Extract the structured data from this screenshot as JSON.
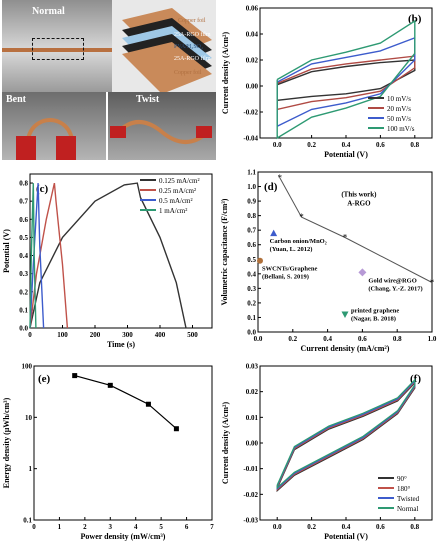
{
  "photos": {
    "normal_label": "Normal",
    "twist_label": "Twist",
    "bent_label": "Bent",
    "stack_layers": [
      "Copper foil",
      "25A-RGO film",
      "PVA/H₂SO₄",
      "25A-RGO film",
      "Copper foil"
    ]
  },
  "chart_data": [
    {
      "panel": "(b)",
      "type": "line",
      "xlabel": "Potential (V)",
      "ylabel": "Current density (A/cm²)",
      "xlim": [
        -0.1,
        0.9
      ],
      "ylim": [
        -0.04,
        0.06
      ],
      "xticks": [
        "0.0",
        "0.2",
        "0.4",
        "0.6",
        "0.8"
      ],
      "yticks": [
        "-0.04",
        "-0.02",
        "0.00",
        "0.02",
        "0.04",
        "0.06"
      ],
      "legend_position": "bottom-right",
      "series": [
        {
          "name": "10 mV/s",
          "color": "#333333",
          "upper": [
            [
              0,
              0.001
            ],
            [
              0.2,
              0.011
            ],
            [
              0.4,
              0.015
            ],
            [
              0.6,
              0.018
            ],
            [
              0.8,
              0.02
            ]
          ],
          "lower": [
            [
              0.8,
              0.012
            ],
            [
              0.6,
              -0.002
            ],
            [
              0.4,
              -0.006
            ],
            [
              0.2,
              -0.008
            ],
            [
              0,
              -0.011
            ]
          ]
        },
        {
          "name": "20 mV/s",
          "color": "#b04a44",
          "upper": [
            [
              0,
              0.002
            ],
            [
              0.2,
              0.013
            ],
            [
              0.4,
              0.017
            ],
            [
              0.6,
              0.02
            ],
            [
              0.8,
              0.023
            ]
          ],
          "lower": [
            [
              0.8,
              0.014
            ],
            [
              0.6,
              -0.004
            ],
            [
              0.4,
              -0.009
            ],
            [
              0.2,
              -0.012
            ],
            [
              0,
              -0.018
            ]
          ]
        },
        {
          "name": "50 mV/s",
          "color": "#3d5ccc",
          "upper": [
            [
              0,
              0.003
            ],
            [
              0.2,
              0.017
            ],
            [
              0.4,
              0.022
            ],
            [
              0.6,
              0.027
            ],
            [
              0.8,
              0.037
            ]
          ],
          "lower": [
            [
              0.8,
              0.02
            ],
            [
              0.6,
              -0.006
            ],
            [
              0.4,
              -0.013
            ],
            [
              0.2,
              -0.018
            ],
            [
              0,
              -0.031
            ]
          ]
        },
        {
          "name": "100 mV/s",
          "color": "#2e9a73",
          "upper": [
            [
              0,
              0.005
            ],
            [
              0.2,
              0.02
            ],
            [
              0.4,
              0.026
            ],
            [
              0.6,
              0.033
            ],
            [
              0.8,
              0.05
            ]
          ],
          "lower": [
            [
              0.8,
              0.025
            ],
            [
              0.6,
              -0.008
            ],
            [
              0.4,
              -0.017
            ],
            [
              0.2,
              -0.024
            ],
            [
              0,
              -0.04
            ]
          ]
        }
      ]
    },
    {
      "panel": "(c)",
      "type": "line",
      "xlabel": "Time (s)",
      "ylabel": "Potential (V)",
      "xlim": [
        0,
        560
      ],
      "ylim": [
        0,
        0.85
      ],
      "xticks": [
        "0",
        "100",
        "200",
        "300",
        "400",
        "500"
      ],
      "yticks": [
        "0.0",
        "0.1",
        "0.2",
        "0.3",
        "0.4",
        "0.5",
        "0.6",
        "0.7",
        "0.8"
      ],
      "legend_position": "top-right",
      "series": [
        {
          "name": "0.125 mA/cm²",
          "color": "#333333",
          "points": [
            [
              0,
              0
            ],
            [
              30,
              0.25
            ],
            [
              100,
              0.5
            ],
            [
              200,
              0.7
            ],
            [
              290,
              0.79
            ],
            [
              330,
              0.8
            ],
            [
              340,
              0.72
            ],
            [
              400,
              0.5
            ],
            [
              450,
              0.25
            ],
            [
              480,
              0
            ]
          ]
        },
        {
          "name": "0.25 mA/cm²",
          "color": "#c0524a",
          "points": [
            [
              0,
              0
            ],
            [
              20,
              0.3
            ],
            [
              50,
              0.6
            ],
            [
              75,
              0.8
            ],
            [
              80,
              0.7
            ],
            [
              100,
              0.35
            ],
            [
              115,
              0
            ]
          ]
        },
        {
          "name": "0.5 mA/cm²",
          "color": "#3d5ccc",
          "points": [
            [
              0,
              0
            ],
            [
              10,
              0.35
            ],
            [
              25,
              0.8
            ],
            [
              30,
              0.45
            ],
            [
              42,
              0
            ]
          ]
        },
        {
          "name": "1 mA/cm²",
          "color": "#2e9a73",
          "points": [
            [
              0,
              0
            ],
            [
              4,
              0.4
            ],
            [
              10,
              0.8
            ],
            [
              13,
              0.4
            ],
            [
              18,
              0
            ]
          ]
        }
      ]
    },
    {
      "panel": "(d)",
      "type": "scatter",
      "xlabel": "Current density (mA/cm²)",
      "ylabel": "Volumetric capacitance (F/cm³)",
      "xlim": [
        0,
        1.0
      ],
      "ylim": [
        0,
        1.1
      ],
      "xticks": [
        "0.0",
        "0.2",
        "0.4",
        "0.6",
        "0.8",
        "1.0"
      ],
      "yticks": [
        "0.0",
        "0.1",
        "0.2",
        "0.3",
        "0.4",
        "0.5",
        "0.6",
        "0.7",
        "0.8",
        "0.9",
        "1.0",
        "1.1"
      ],
      "this_work": {
        "label": "(This work)\nA-RGO",
        "points": [
          [
            0.125,
            1.06
          ],
          [
            0.25,
            0.79
          ],
          [
            0.5,
            0.65
          ],
          [
            1.0,
            0.34
          ]
        ]
      },
      "references": [
        {
          "label": "Carbon onion/MnO₂\n(Yuan, L. 2012)",
          "x": 0.09,
          "y": 0.68,
          "color": "#3d5ccc",
          "marker": "triangle"
        },
        {
          "label": "SWCNTs/Graphene\n(Bellani, S. 2019)",
          "x": 0.0,
          "y": 0.49,
          "color": "#b0703a",
          "marker": "circle"
        },
        {
          "label": "Gold wire@RGO\n(Chang, Y.-Z. 2017)",
          "x": 0.6,
          "y": 0.41,
          "color": "#b79ad6",
          "marker": "diamond"
        },
        {
          "label": "printed graphene\n(Nagar, B. 2018)",
          "x": 0.5,
          "y": 0.12,
          "color": "#2e9a73",
          "marker": "triangle-down"
        }
      ]
    },
    {
      "panel": "(e)",
      "type": "line",
      "xlabel": "Power density (mW/cm³)",
      "ylabel": "Energy density (μWh/cm³)",
      "xlim": [
        0,
        7
      ],
      "ylim_log": [
        0.1,
        100
      ],
      "xticks": [
        "0",
        "1",
        "2",
        "3",
        "4",
        "5",
        "6",
        "7"
      ],
      "yticks": [
        "0.1",
        "1",
        "10",
        "100"
      ],
      "points": [
        [
          1.6,
          65
        ],
        [
          3.0,
          42
        ],
        [
          4.5,
          18
        ],
        [
          5.6,
          6
        ]
      ]
    },
    {
      "panel": "(f)",
      "type": "line",
      "xlabel": "Potential (V)",
      "ylabel": "Current density (A/cm²)",
      "xlim": [
        -0.1,
        0.9
      ],
      "ylim": [
        -0.03,
        0.03
      ],
      "xticks": [
        "0.0",
        "0.2",
        "0.4",
        "0.6",
        "0.8"
      ],
      "yticks": [
        "-0.03",
        "-0.02",
        "-0.01",
        "0.00",
        "0.01",
        "0.02",
        "0.03"
      ],
      "legend_position": "bottom-right",
      "series": [
        {
          "name": "90°",
          "color": "#333333"
        },
        {
          "name": "180°",
          "color": "#c0524a"
        },
        {
          "name": "Twisted",
          "color": "#3d5ccc"
        },
        {
          "name": "Normal",
          "color": "#2e9a73"
        }
      ],
      "upper": [
        [
          0,
          -0.017
        ],
        [
          0.1,
          -0.002
        ],
        [
          0.3,
          0.006
        ],
        [
          0.5,
          0.011
        ],
        [
          0.7,
          0.017
        ],
        [
          0.8,
          0.024
        ]
      ],
      "lower": [
        [
          0.8,
          0.022
        ],
        [
          0.7,
          0.012
        ],
        [
          0.5,
          0.002
        ],
        [
          0.3,
          -0.005
        ],
        [
          0.1,
          -0.012
        ],
        [
          0,
          -0.018
        ]
      ]
    }
  ]
}
